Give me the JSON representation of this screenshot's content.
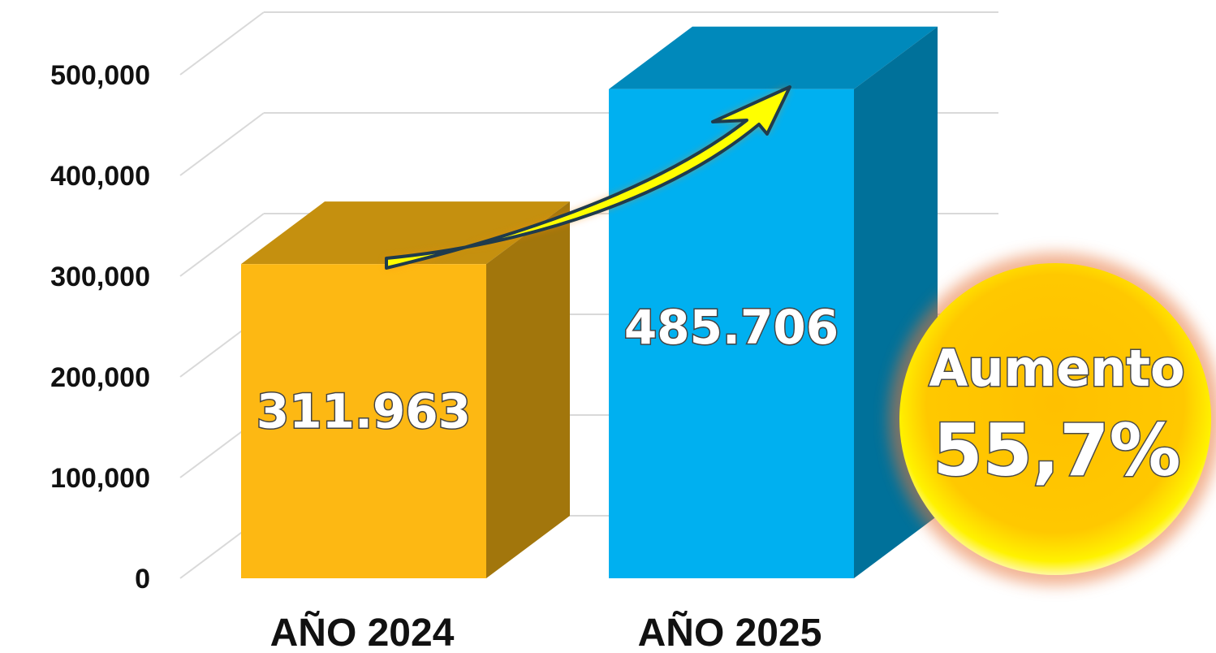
{
  "chart_data": {
    "type": "bar",
    "categories": [
      "AÑO 2024",
      "AÑO 2025"
    ],
    "values": [
      311963,
      485706
    ],
    "value_labels": [
      "311.963",
      "485.706"
    ],
    "colors": [
      "#FDB813",
      "#00B0F0"
    ],
    "y_ticks": [
      0,
      100000,
      200000,
      300000,
      400000,
      500000
    ],
    "y_tick_labels": [
      "0",
      "100,000",
      "200,000",
      "300,000",
      "400,000",
      "500,000"
    ],
    "ylim": [
      0,
      560000
    ],
    "grid": true,
    "style": "3d-columns",
    "annotation": {
      "line1": "Aumento",
      "line2": "55,7%"
    }
  }
}
